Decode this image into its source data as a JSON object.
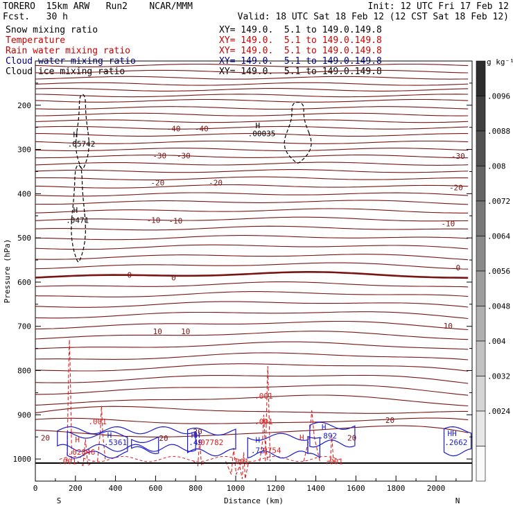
{
  "header": {
    "model": "TORERO  15km ARW   Run2    NCAR/MMM",
    "init": "Init: 12 UTC Fri 17 Feb 12",
    "fcst": "Fcst.   30 h",
    "valid": "Valid: 18 UTC Sat 18 Feb 12 (12 CST Sat 18 Feb 12)"
  },
  "fields": [
    {
      "name": "Snow mixing ratio",
      "xy": "XY= 149.0.  5.1 to 149.0.149.8",
      "color": "#000000"
    },
    {
      "name": "Temperature",
      "xy": "XY= 149.0.  5.1 to 149.0.149.8",
      "color": "#cc0000"
    },
    {
      "name": "Rain water mixing ratio",
      "xy": "XY= 149.0.  5.1 to 149.0.149.8",
      "color": "#cc0000"
    },
    {
      "name": "Cloud water mixing ratio",
      "xy": "XY= 149.0.  5.1 to 149.0.149.8",
      "color": "#000080"
    },
    {
      "name": "Cloud ice mixing ratio",
      "xy": "XY= 149.0.  5.1 to 149.0.149.8",
      "color": "#000000"
    }
  ],
  "colors": {
    "temperature": "#7a1414",
    "rain": "#e02020",
    "cloud_water": "#1a1acc",
    "ice": "#000000",
    "ground": "#000000"
  },
  "chart_data": {
    "type": "contour-cross-section",
    "xlabel": "Distance (km)",
    "ylabel": "Pressure (hPa)",
    "xlim": [
      0,
      2180
    ],
    "ylim": [
      1050,
      100
    ],
    "xticks": [
      0,
      200,
      400,
      600,
      800,
      1000,
      1200,
      1400,
      1600,
      1800,
      2000
    ],
    "yticks": [
      200,
      300,
      400,
      500,
      600,
      700,
      800,
      900,
      1000
    ],
    "x_end_labels": {
      "left": "S",
      "right": "N"
    },
    "colorbar": {
      "unit": "g kg⁻¹",
      "ticks": [
        ".0096",
        ".0088",
        ".008",
        ".0072",
        ".0064",
        ".0056",
        ".0048",
        ".004",
        ".0032",
        ".0024"
      ]
    },
    "temperature_labels": [
      {
        "text": "-40",
        "x": 690,
        "p": 253
      },
      {
        "text": "-40",
        "x": 830,
        "p": 253
      },
      {
        "text": "-30",
        "x": 620,
        "p": 314
      },
      {
        "text": "-30",
        "x": 740,
        "p": 314
      },
      {
        "text": "-30",
        "x": 2110,
        "p": 315
      },
      {
        "text": "-20",
        "x": 610,
        "p": 375
      },
      {
        "text": "-20",
        "x": 900,
        "p": 375
      },
      {
        "text": "-20",
        "x": 2100,
        "p": 386
      },
      {
        "text": "-10",
        "x": 590,
        "p": 460
      },
      {
        "text": "-10",
        "x": 700,
        "p": 461
      },
      {
        "text": "-10",
        "x": 2060,
        "p": 468
      },
      {
        "text": "0",
        "x": 470,
        "p": 584
      },
      {
        "text": "0",
        "x": 690,
        "p": 590
      },
      {
        "text": "0",
        "x": 2110,
        "p": 567
      },
      {
        "text": "10",
        "x": 610,
        "p": 711
      },
      {
        "text": "10",
        "x": 750,
        "p": 711
      },
      {
        "text": "10",
        "x": 2060,
        "p": 699
      },
      {
        "text": "20",
        "x": 50,
        "p": 952
      },
      {
        "text": "20",
        "x": 640,
        "p": 953
      },
      {
        "text": "20",
        "x": 810,
        "p": 938
      },
      {
        "text": "20",
        "x": 1770,
        "p": 912
      },
      {
        "text": "20",
        "x": 1580,
        "p": 952
      }
    ],
    "max_labels": [
      {
        "text": "H",
        "x": 200,
        "p": 266,
        "color": "#000000"
      },
      {
        "text": ".05742",
        "x": 230,
        "p": 287,
        "color": "#000000"
      },
      {
        "text": "H",
        "x": 1110,
        "p": 246,
        "color": "#000000"
      },
      {
        "text": ".00035",
        "x": 1130,
        "p": 264,
        "color": "#000000"
      },
      {
        "text": "H",
        "x": 200,
        "p": 437,
        "color": "#000000"
      },
      {
        "text": ".0471",
        "x": 210,
        "p": 460,
        "color": "#000000"
      },
      {
        "text": ".001",
        "x": 1140,
        "p": 857,
        "color": "#e02020"
      },
      {
        "text": ".001",
        "x": 1140,
        "p": 915,
        "color": "#e02020"
      },
      {
        "text": ".001",
        "x": 310,
        "p": 915,
        "color": "#e02020"
      },
      {
        "text": ".001",
        "x": 1020,
        "p": 1005,
        "color": "#e02020"
      },
      {
        "text": ".001",
        "x": 1490,
        "p": 1005,
        "color": "#e02020"
      },
      {
        "text": ".001",
        "x": 160,
        "p": 1005,
        "color": "#e02020"
      },
      {
        "text": "H",
        "x": 210,
        "p": 956,
        "color": "#e02020"
      },
      {
        "text": ".02846",
        "x": 230,
        "p": 984,
        "color": "#e02020"
      },
      {
        "text": "H",
        "x": 370,
        "p": 946,
        "color": "#1a1acc"
      },
      {
        "text": ".5361",
        "x": 400,
        "p": 962,
        "color": "#1a1acc"
      },
      {
        "text": "HH",
        "x": 800,
        "p": 946,
        "color": "#1a1acc"
      },
      {
        "text": ".49",
        "x": 800,
        "p": 962,
        "color": "#1a1acc"
      },
      {
        "text": ".07782",
        "x": 870,
        "p": 962,
        "color": "#e02020"
      },
      {
        "text": "H",
        "x": 1110,
        "p": 957,
        "color": "#1a1acc"
      },
      {
        "text": ".72",
        "x": 1110,
        "p": 980,
        "color": "#1a1acc"
      },
      {
        "text": ".0754",
        "x": 1170,
        "p": 980,
        "color": "#e02020"
      },
      {
        "text": "H",
        "x": 1440,
        "p": 928,
        "color": "#1a1acc"
      },
      {
        "text": ".892",
        "x": 1460,
        "p": 947,
        "color": "#1a1acc"
      },
      {
        "text": "HH",
        "x": 2080,
        "p": 942,
        "color": "#1a1acc"
      },
      {
        "text": ".2662",
        "x": 2100,
        "p": 962,
        "color": "#1a1acc"
      },
      {
        "text": "H",
        "x": 1330,
        "p": 951,
        "color": "#e02020"
      }
    ]
  }
}
